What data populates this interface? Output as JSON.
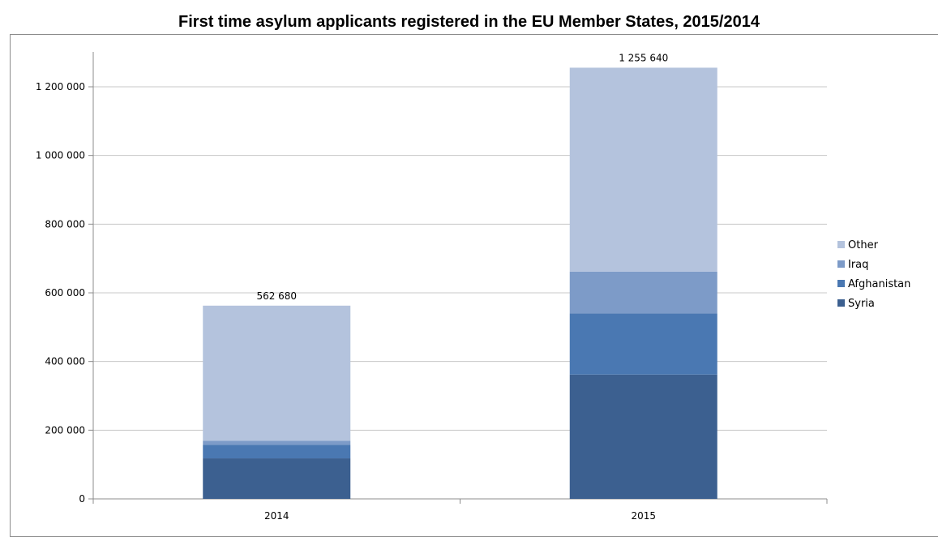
{
  "chart_data": {
    "type": "bar",
    "stacked": true,
    "title": "First time asylum applicants registered in the EU Member States, 2015/2014",
    "categories": [
      "2014",
      "2015"
    ],
    "series": [
      {
        "name": "Syria",
        "values": [
          118000,
          362000
        ],
        "color": "#3c6090"
      },
      {
        "name": "Afghanistan",
        "values": [
          39000,
          178000
        ],
        "color": "#4a78b2"
      },
      {
        "name": "Iraq",
        "values": [
          12000,
          122000
        ],
        "color": "#7d9bc8"
      },
      {
        "name": "Other",
        "values": [
          393680,
          593640
        ],
        "color": "#b4c3dd"
      }
    ],
    "totals": [
      "562 680",
      "1 255 640"
    ],
    "ylim": [
      0,
      1200000
    ],
    "yticks": [
      0,
      200000,
      400000,
      600000,
      800000,
      1000000,
      1200000
    ],
    "ytick_labels": [
      "0",
      "200 000",
      "400 000",
      "600 000",
      "800 000",
      "1 000 000",
      "1 200 000"
    ],
    "legend_order": [
      "Other",
      "Iraq",
      "Afghanistan",
      "Syria"
    ],
    "legend_position": "right",
    "grid": true
  }
}
